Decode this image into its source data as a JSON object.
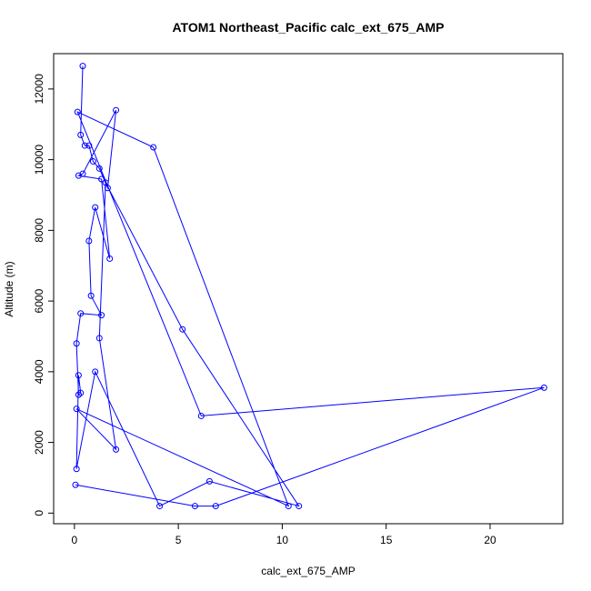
{
  "chart_data": {
    "type": "scatter",
    "title": "ATOM1 Northeast_Pacific calc_ext_675_AMP",
    "xlabel": "calc_ext_675_AMP",
    "ylabel": "Altitude (m)",
    "xlim": [
      -1.0,
      23.5
    ],
    "ylim": [
      -300,
      13000
    ],
    "xticks": [
      0,
      5,
      10,
      15,
      20
    ],
    "yticks": [
      0,
      2000,
      4000,
      6000,
      8000,
      10000,
      12000
    ],
    "grid": false,
    "color": "#0000ff",
    "series": [
      {
        "x": [
          0.4,
          0.3,
          0.5,
          0.7,
          0.9,
          1.2,
          1.6,
          2.0,
          0.4,
          0.2,
          1.3,
          1.7,
          1.0,
          0.7,
          0.8,
          1.3,
          0.3,
          0.1,
          0.2,
          0.3,
          0.2,
          0.1,
          1.0,
          4.1,
          6.5,
          10.8,
          5.2,
          1.5,
          1.2,
          2.0,
          0.1,
          10.3,
          3.8,
          0.15,
          6.1,
          22.6,
          6.8,
          5.8,
          0.05
        ],
        "y": [
          12650,
          10700,
          10400,
          10400,
          9950,
          9750,
          9200,
          11400,
          9600,
          9550,
          9450,
          7200,
          8650,
          7700,
          6150,
          5600,
          5650,
          4800,
          3350,
          3400,
          3900,
          1250,
          4000,
          200,
          900,
          200,
          5200,
          9350,
          4950,
          1800,
          2950,
          200,
          10350,
          11350,
          2750,
          3550,
          200,
          200,
          800
        ]
      }
    ]
  }
}
